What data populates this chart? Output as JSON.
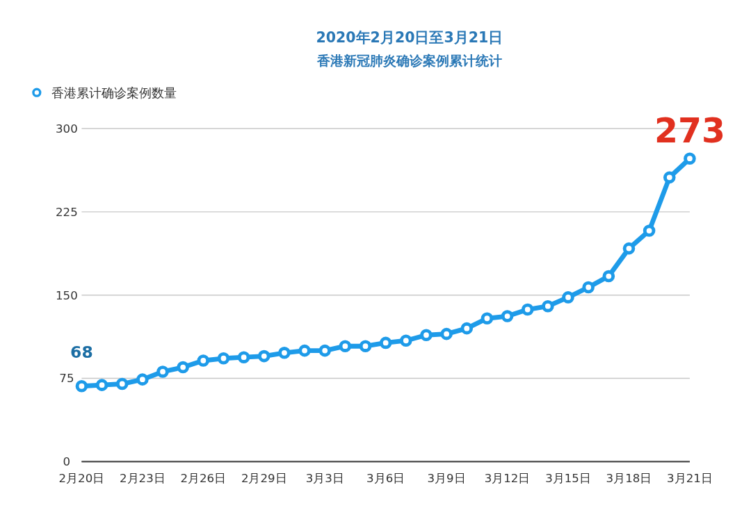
{
  "chart_data": {
    "type": "line",
    "title": "2020年2月20日至3月21日",
    "subtitle": "香港新冠肺炎确诊案例累计统计",
    "categories": [
      "2月20日",
      null,
      null,
      "2月23日",
      null,
      null,
      "2月26日",
      null,
      null,
      "2月29日",
      null,
      null,
      "3月3日",
      null,
      null,
      "3月6日",
      null,
      null,
      "3月9日",
      null,
      null,
      "3月12日",
      null,
      null,
      "3月15日",
      null,
      null,
      "3月18日",
      null,
      null,
      "3月21日"
    ],
    "series": [
      {
        "name": "香港累计确诊案例数量",
        "color": "#1e9be9",
        "values": [
          68,
          69,
          70,
          74,
          81,
          85,
          91,
          93,
          94,
          95,
          98,
          100,
          100,
          104,
          104,
          107,
          109,
          114,
          115,
          120,
          129,
          131,
          137,
          140,
          148,
          157,
          167,
          192,
          208,
          256,
          273
        ],
        "value_labels": [
          "68",
          null,
          null,
          null,
          null,
          null,
          null,
          null,
          null,
          null,
          null,
          null,
          null,
          null,
          null,
          null,
          null,
          null,
          null,
          null,
          null,
          null,
          null,
          null,
          null,
          null,
          null,
          null,
          null,
          null,
          "273"
        ]
      }
    ],
    "ylim": [
      0,
      300
    ],
    "yticks": [
      0,
      75,
      150,
      225,
      300
    ],
    "grid": "y",
    "legend": "top left",
    "marker": "circle",
    "line_style": "solid"
  }
}
